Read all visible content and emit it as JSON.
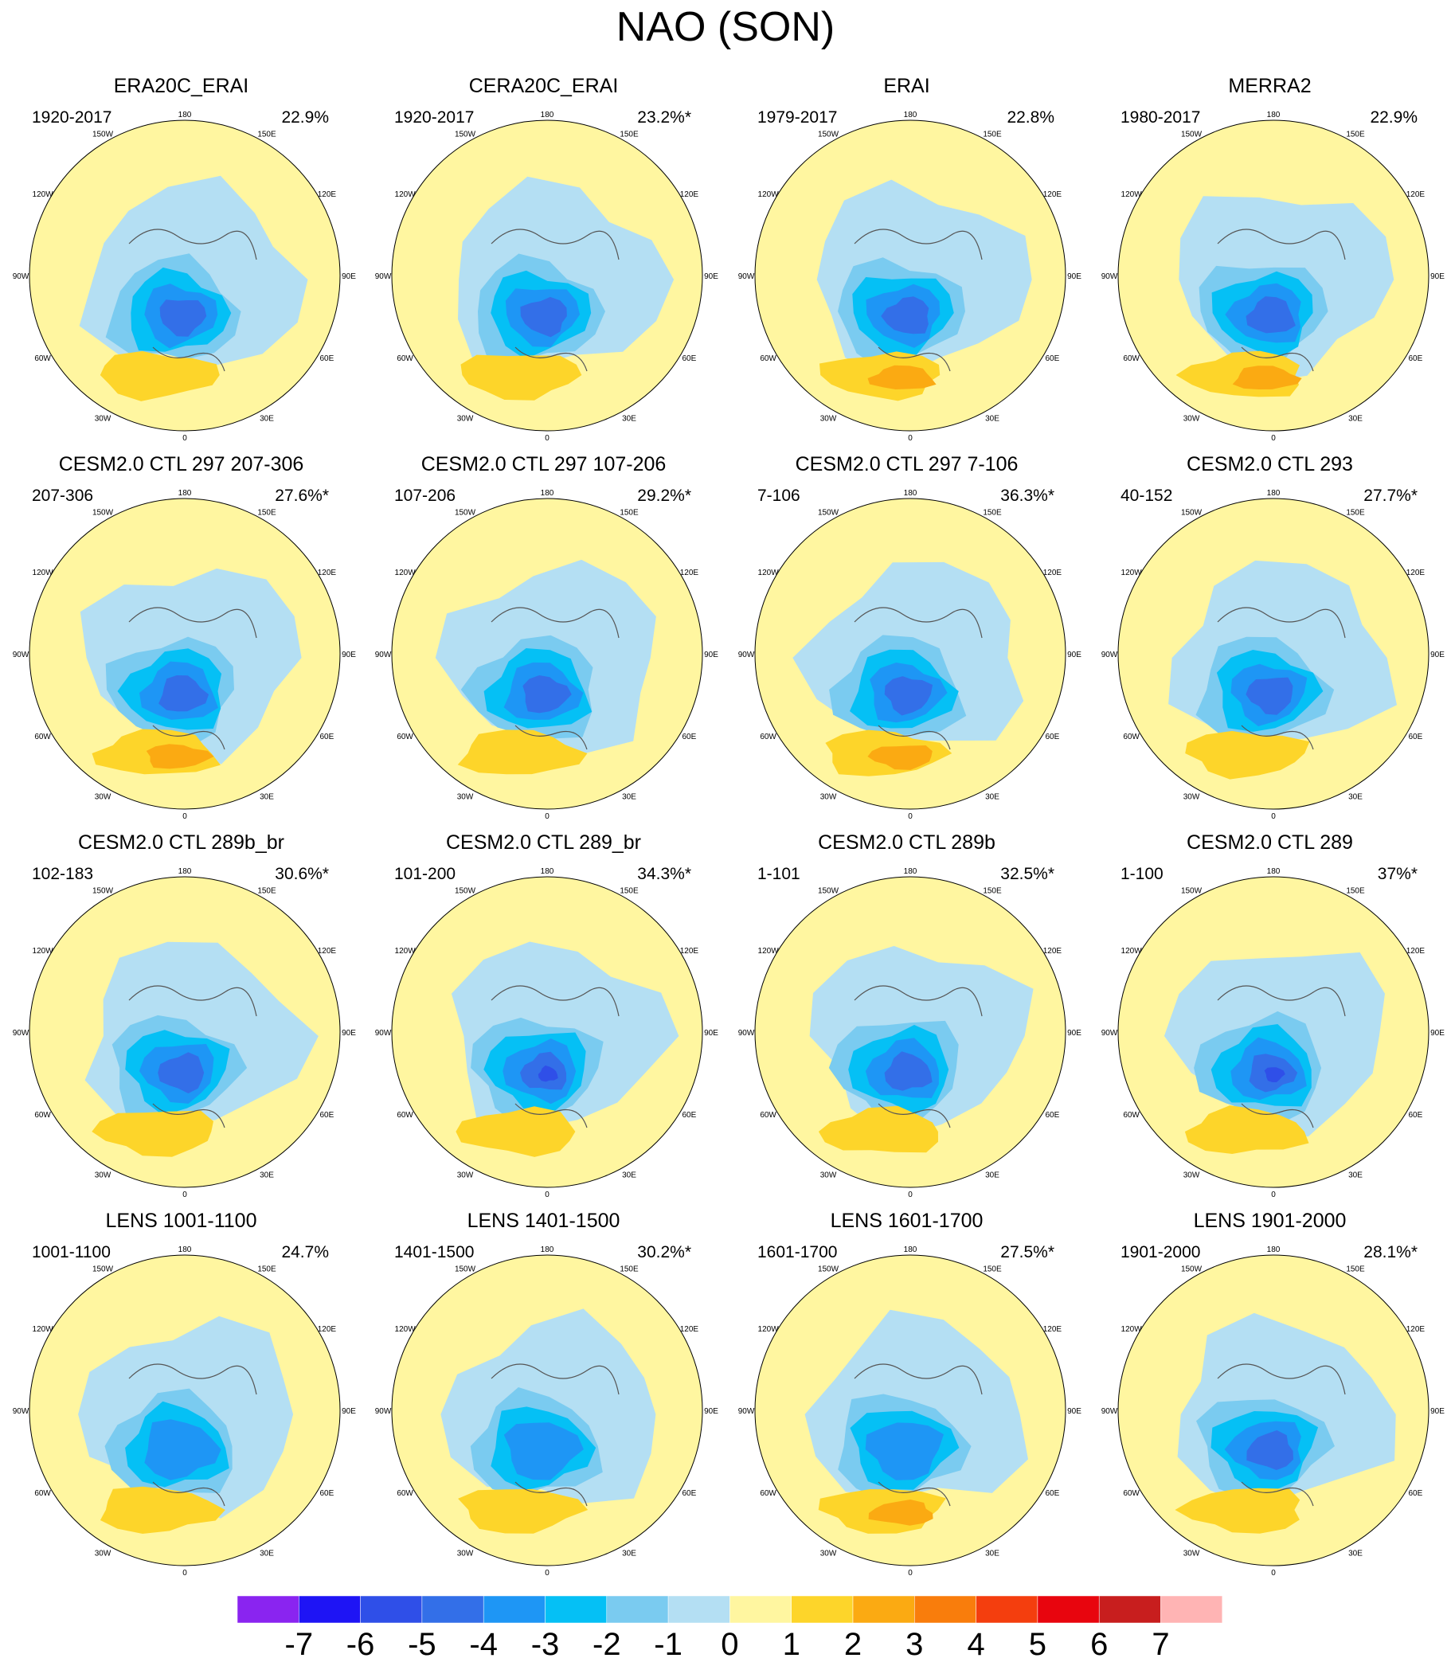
{
  "title": "NAO (SON)",
  "chart_data": {
    "type": "heatmap",
    "projection": "north-polar-stereographic",
    "longitude_labels": [
      "180",
      "150E",
      "120E",
      "90E",
      "60E",
      "30E",
      "0",
      "30W",
      "60W",
      "90W",
      "120W",
      "150W"
    ],
    "colorbar": {
      "ticks": [
        "-7",
        "-6",
        "-5",
        "-4",
        "-3",
        "-2",
        "-1",
        "0",
        "1",
        "2",
        "3",
        "4",
        "5",
        "6",
        "7"
      ],
      "colors": [
        "#8a24f0",
        "#1e14f5",
        "#2f4fe8",
        "#336fe8",
        "#1e96f5",
        "#05c0f5",
        "#7acbf0",
        "#b4dff3",
        "#fff6a0",
        "#fdd52a",
        "#fbaa12",
        "#f97d0c",
        "#f43e0e",
        "#e8050e",
        "#c81e1e",
        "#ffb4b4"
      ]
    },
    "panels": [
      {
        "title": "ERA20C_ERAI",
        "years": "1920-2017",
        "variance": "22.9%",
        "center_min": -4,
        "atlantic_max": 2
      },
      {
        "title": "CERA20C_ERAI",
        "years": "1920-2017",
        "variance": "23.2%*",
        "center_min": -4,
        "atlantic_max": 2
      },
      {
        "title": "ERAI",
        "years": "1979-2017",
        "variance": "22.8%",
        "center_min": -4,
        "atlantic_max": 3
      },
      {
        "title": "MERRA2",
        "years": "1980-2017",
        "variance": "22.9%",
        "center_min": -4,
        "atlantic_max": 3
      },
      {
        "title": "CESM2.0 CTL 297 207-306",
        "years": "207-306",
        "variance": "27.6%*",
        "center_min": -4,
        "atlantic_max": 3
      },
      {
        "title": "CESM2.0 CTL 297 107-206",
        "years": "107-206",
        "variance": "29.2%*",
        "center_min": -4,
        "atlantic_max": 2
      },
      {
        "title": "CESM2.0 CTL 297 7-106",
        "years": "7-106",
        "variance": "36.3%*",
        "center_min": -4,
        "atlantic_max": 3
      },
      {
        "title": "CESM2.0 CTL 293",
        "years": "40-152",
        "variance": "27.7%*",
        "center_min": -4,
        "atlantic_max": 2
      },
      {
        "title": "CESM2.0 CTL 289b_br",
        "years": "102-183",
        "variance": "30.6%*",
        "center_min": -4,
        "atlantic_max": 2
      },
      {
        "title": "CESM2.0 CTL 289_br",
        "years": "101-200",
        "variance": "34.3%*",
        "center_min": -5,
        "atlantic_max": 2
      },
      {
        "title": "CESM2.0 CTL 289b",
        "years": "1-101",
        "variance": "32.5%*",
        "center_min": -4,
        "atlantic_max": 2
      },
      {
        "title": "CESM2.0 CTL 289",
        "years": "1-100",
        "variance": "37%*",
        "center_min": -5,
        "atlantic_max": 2
      },
      {
        "title": "LENS 1001-1100",
        "years": "1001-1100",
        "variance": "24.7%",
        "center_min": -3,
        "atlantic_max": 2
      },
      {
        "title": "LENS 1401-1500",
        "years": "1401-1500",
        "variance": "30.2%*",
        "center_min": -3,
        "atlantic_max": 2
      },
      {
        "title": "LENS 1601-1700",
        "years": "1601-1700",
        "variance": "27.5%*",
        "center_min": -3,
        "atlantic_max": 3
      },
      {
        "title": "LENS 1901-2000",
        "years": "1901-2000",
        "variance": "28.1%*",
        "center_min": -4,
        "atlantic_max": 2
      }
    ]
  }
}
